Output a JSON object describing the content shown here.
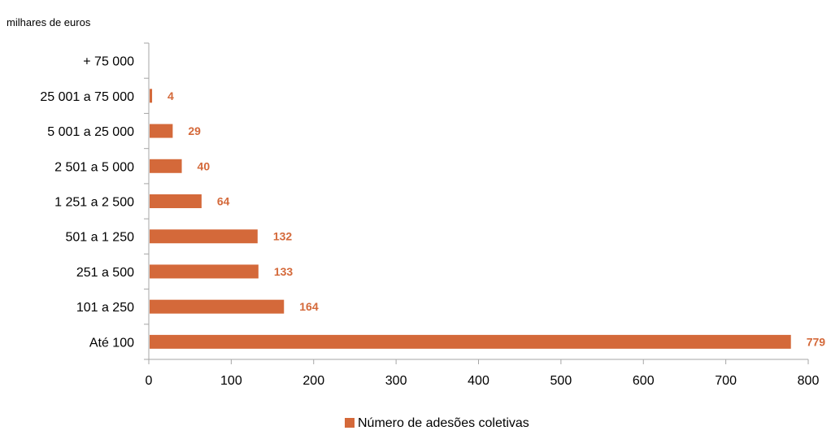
{
  "chart_data": {
    "type": "bar",
    "orientation": "horizontal",
    "unit_label": "milhares de euros",
    "categories": [
      "Até 100",
      "101 a 250",
      "251 a 500",
      "501 a 1 250",
      "1 251 a 2 500",
      "2 501 a 5 000",
      "5 001 a 25 000",
      "25 001 a 75 000",
      "+ 75 000"
    ],
    "series": [
      {
        "name": "Número de adesões coletivas",
        "values": [
          779,
          164,
          133,
          132,
          64,
          40,
          29,
          4,
          0
        ],
        "data_labels": [
          "779",
          "164",
          "133",
          "132",
          "64",
          "40",
          "29",
          "4",
          ""
        ]
      }
    ],
    "xlim": [
      0,
      800
    ],
    "xticks": [
      0,
      100,
      200,
      300,
      400,
      500,
      600,
      700,
      800
    ],
    "grid": false,
    "legend_position": "bottom",
    "bar_color": "#D4693A",
    "label_color": "#D4693A"
  }
}
